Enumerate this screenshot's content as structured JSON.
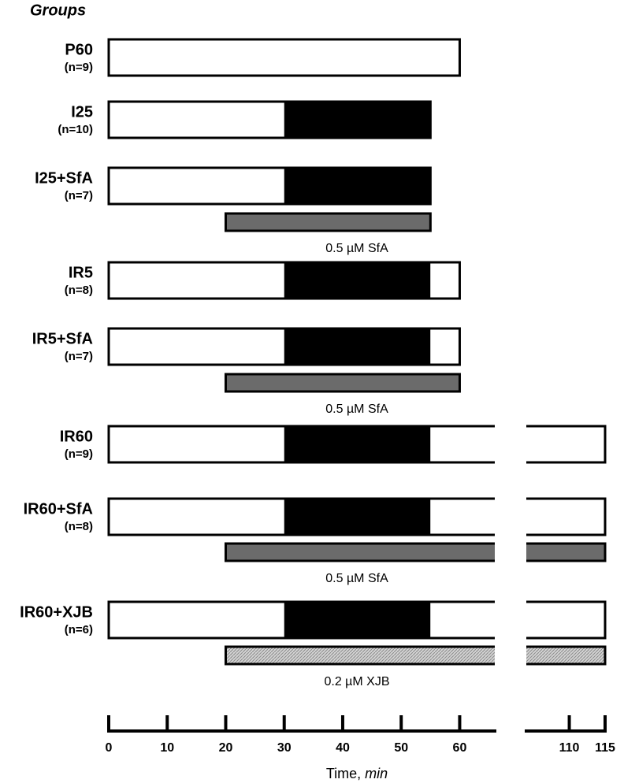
{
  "title": "Groups",
  "groups": [
    {
      "name": "P60",
      "n": "(n=9)",
      "segments": [
        {
          "fill": "white",
          "start": 0,
          "end": 60
        }
      ]
    },
    {
      "name": "I25",
      "n": "(n=10)",
      "segments": [
        {
          "fill": "white",
          "start": 0,
          "end": 30
        },
        {
          "fill": "black",
          "start": 30,
          "end": 55
        }
      ]
    },
    {
      "name": "I25+SfA",
      "n": "(n=7)",
      "segments": [
        {
          "fill": "white",
          "start": 0,
          "end": 30
        },
        {
          "fill": "black",
          "start": 30,
          "end": 55
        }
      ],
      "drug": {
        "label": "0.5 µM SfA",
        "start": 20,
        "end": 55,
        "color": "#6b6b6b"
      }
    },
    {
      "name": "IR5",
      "n": "(n=8)",
      "segments": [
        {
          "fill": "white",
          "start": 0,
          "end": 30
        },
        {
          "fill": "black",
          "start": 30,
          "end": 55
        },
        {
          "fill": "white",
          "start": 55,
          "end": 60
        }
      ]
    },
    {
      "name": "IR5+SfA",
      "n": "(n=7)",
      "segments": [
        {
          "fill": "white",
          "start": 0,
          "end": 30
        },
        {
          "fill": "black",
          "start": 30,
          "end": 55
        },
        {
          "fill": "white",
          "start": 55,
          "end": 60
        }
      ],
      "drug": {
        "label": "0.5 µM SfA",
        "start": 20,
        "end": 60,
        "color": "#6b6b6b"
      }
    },
    {
      "name": "IR60",
      "n": "(n=9)",
      "segments": [
        {
          "fill": "white",
          "start": 0,
          "end": 30
        },
        {
          "fill": "black",
          "start": 30,
          "end": 55
        },
        {
          "fill": "white",
          "start": 55,
          "end": 115
        }
      ]
    },
    {
      "name": "IR60+SfA",
      "n": "(n=8)",
      "segments": [
        {
          "fill": "white",
          "start": 0,
          "end": 30
        },
        {
          "fill": "black",
          "start": 30,
          "end": 55
        },
        {
          "fill": "white",
          "start": 55,
          "end": 115
        }
      ],
      "drug": {
        "label": "0.5 µM SfA",
        "start": 20,
        "end": 115,
        "color": "#6b6b6b"
      }
    },
    {
      "name": "IR60+XJB",
      "n": "(n=6)",
      "segments": [
        {
          "fill": "white",
          "start": 0,
          "end": 30
        },
        {
          "fill": "black",
          "start": 30,
          "end": 55
        },
        {
          "fill": "white",
          "start": 55,
          "end": 115
        }
      ],
      "drug": {
        "label": "0.2 µM XJB",
        "start": 20,
        "end": 115,
        "color": "#c8c8c8"
      }
    }
  ],
  "axis": {
    "label": "Time, ",
    "label_unit": "min",
    "segments": [
      [
        0,
        66
      ],
      [
        104,
        115
      ]
    ],
    "ticks": [
      0,
      10,
      20,
      30,
      40,
      50,
      60,
      110,
      115
    ]
  }
}
